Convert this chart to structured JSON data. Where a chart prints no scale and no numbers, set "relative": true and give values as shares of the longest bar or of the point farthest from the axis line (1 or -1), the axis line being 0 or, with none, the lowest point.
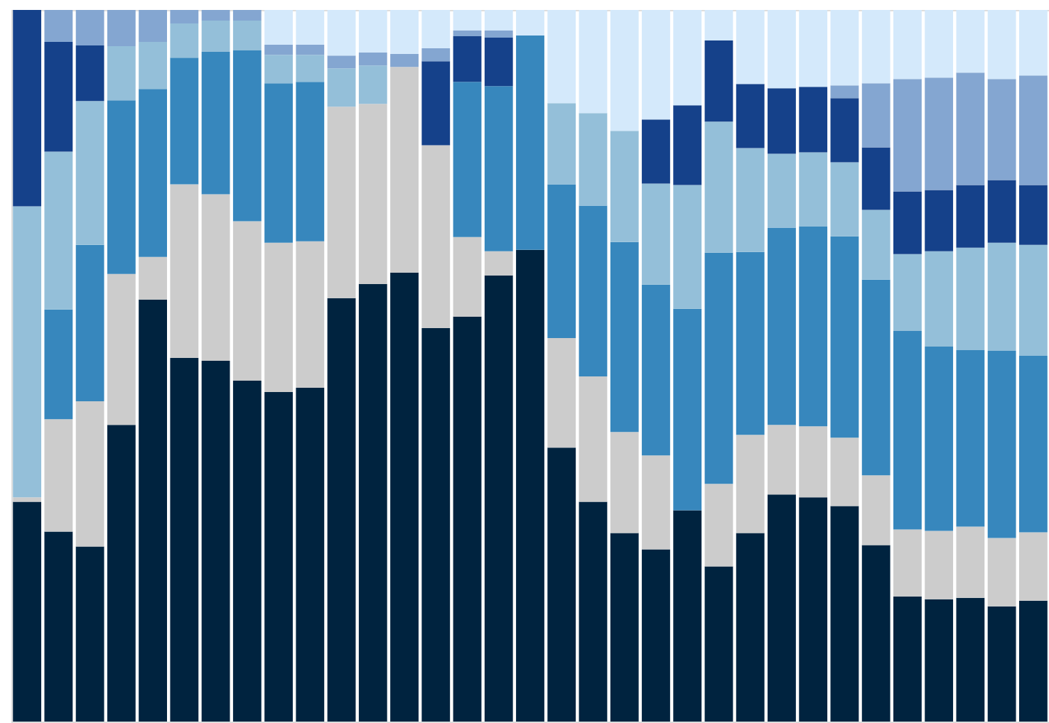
{
  "chart_data": {
    "type": "bar",
    "stacked": true,
    "relative": true,
    "legend": false,
    "grid": false,
    "categories": [
      null,
      null,
      null,
      null,
      null,
      null,
      null,
      null,
      null,
      null,
      null,
      null,
      null,
      null,
      null,
      null,
      null,
      null,
      null,
      null,
      null,
      null,
      null,
      null,
      null,
      null,
      null,
      null,
      null,
      null,
      null,
      null,
      null
    ],
    "series": [
      {
        "color": "#00233f",
        "values": [
          0.309,
          0.267,
          0.246,
          0.417,
          0.593,
          0.511,
          0.507,
          0.479,
          0.463,
          0.469,
          0.595,
          0.615,
          0.631,
          0.553,
          0.569,
          0.627,
          0.663,
          0.385,
          0.309,
          0.265,
          0.242,
          0.297,
          0.218,
          0.265,
          0.319,
          0.315,
          0.303,
          0.248,
          0.176,
          0.172,
          0.174,
          0.162,
          0.17
        ]
      },
      {
        "color": "#cccccc",
        "values": [
          0.006,
          0.158,
          0.204,
          0.212,
          0.06,
          0.244,
          0.234,
          0.224,
          0.21,
          0.206,
          0.269,
          0.253,
          0.289,
          0.257,
          0.112,
          0.034,
          0,
          0.154,
          0.176,
          0.142,
          0.132,
          0,
          0.116,
          0.138,
          0.098,
          0.1,
          0.096,
          0.098,
          0.094,
          0.096,
          0.1,
          0.096,
          0.096
        ]
      },
      {
        "color": "#3787bd",
        "values": [
          0,
          0.154,
          0.22,
          0.244,
          0.236,
          0.178,
          0.2,
          0.24,
          0.224,
          0.224,
          0,
          0,
          0,
          0,
          0.218,
          0.232,
          0.301,
          0.216,
          0.24,
          0.267,
          0.24,
          0.283,
          0.325,
          0.257,
          0.277,
          0.281,
          0.283,
          0.275,
          0.279,
          0.259,
          0.248,
          0.263,
          0.248
        ]
      },
      {
        "color": "#94bfd9",
        "values": [
          0.409,
          0.222,
          0.202,
          0.076,
          0.066,
          0.048,
          0.044,
          0.042,
          0.04,
          0.038,
          0.054,
          0.054,
          0,
          0,
          0,
          0,
          0,
          0.114,
          0.13,
          0.156,
          0.142,
          0.174,
          0.184,
          0.146,
          0.104,
          0.104,
          0.104,
          0.098,
          0.108,
          0.134,
          0.144,
          0.152,
          0.156
        ]
      },
      {
        "color": "#15418a",
        "values": [
          0.276,
          0.154,
          0.078,
          0,
          0,
          0,
          0,
          0,
          0,
          0,
          0,
          0,
          0,
          0.118,
          0.064,
          0.068,
          0,
          0,
          0,
          0,
          0.09,
          0.112,
          0.114,
          0.09,
          0.092,
          0.092,
          0.09,
          0.088,
          0.088,
          0.086,
          0.088,
          0.088,
          0.084
        ]
      },
      {
        "color": "#84a6d1",
        "values": [
          0,
          0.045,
          0.05,
          0.051,
          0.045,
          0.019,
          0.015,
          0.015,
          0.014,
          0.014,
          0.018,
          0.018,
          0.018,
          0.018,
          0.008,
          0.01,
          0,
          0,
          0,
          0,
          0,
          0,
          0,
          0,
          0,
          0,
          0.018,
          0.09,
          0.158,
          0.158,
          0.158,
          0.142,
          0.154
        ]
      },
      {
        "color": "#d4e9fb",
        "values": [
          0,
          0,
          0,
          0,
          0,
          0,
          0,
          0,
          0.049,
          0.049,
          0.064,
          0.06,
          0.062,
          0.054,
          0.029,
          0.029,
          0.036,
          0.131,
          0.145,
          0.17,
          0.154,
          0.134,
          0.043,
          0.104,
          0.11,
          0.108,
          0.106,
          0.103,
          0.097,
          0.095,
          0.088,
          0.097,
          0.092
        ]
      }
    ]
  }
}
